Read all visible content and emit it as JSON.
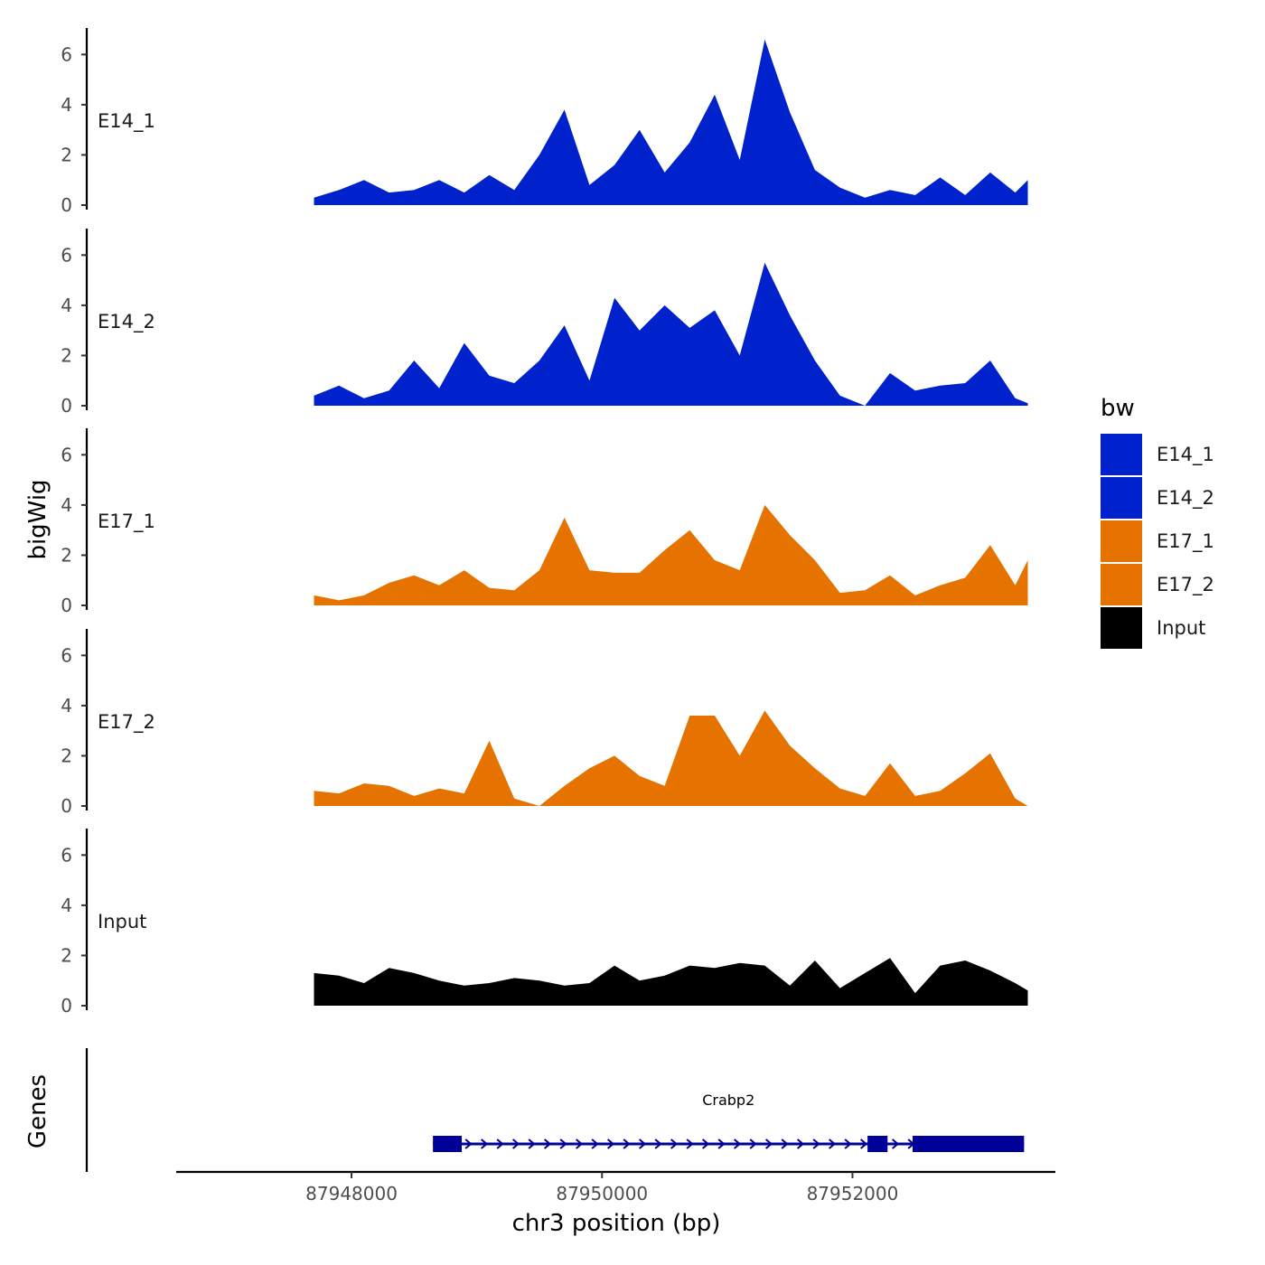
{
  "chart_data": {
    "type": "area",
    "title": "",
    "ylabel": "bigWig",
    "xlabel": "chr3 position (bp)",
    "chrom": "chr3",
    "xlim": [
      87946600,
      87953620
    ],
    "ylim": [
      0,
      7.2
    ],
    "yticks": [
      0,
      2,
      4,
      6
    ],
    "xticks": [
      87948000,
      87950000,
      87952000
    ],
    "xtick_labels": [
      "87948000",
      "87950000",
      "87952000"
    ],
    "x": [
      87947700,
      87947900,
      87948100,
      87948300,
      87948500,
      87948700,
      87948900,
      87949100,
      87949300,
      87949500,
      87949700,
      87949900,
      87950100,
      87950300,
      87950500,
      87950700,
      87950900,
      87951100,
      87951300,
      87951500,
      87951700,
      87951900,
      87952100,
      87952300,
      87952500,
      87952700,
      87952900,
      87953100,
      87953300,
      87953400
    ],
    "series": [
      {
        "name": "E14_1",
        "color": "#0022cc",
        "values": [
          0.3,
          0.6,
          1.0,
          0.5,
          0.6,
          1.0,
          0.5,
          1.2,
          0.6,
          2.0,
          3.8,
          0.8,
          1.6,
          3.0,
          1.3,
          2.5,
          4.4,
          1.8,
          6.6,
          3.7,
          1.4,
          0.7,
          0.3,
          0.6,
          0.4,
          1.1,
          0.4,
          1.3,
          0.5,
          1.0
        ]
      },
      {
        "name": "E14_2",
        "color": "#0022cc",
        "values": [
          0.4,
          0.8,
          0.3,
          0.6,
          1.8,
          0.7,
          2.5,
          1.2,
          0.9,
          1.8,
          3.2,
          1.0,
          4.3,
          3.0,
          4.0,
          3.1,
          3.8,
          2.0,
          5.7,
          3.6,
          1.8,
          0.4,
          0.0,
          1.3,
          0.6,
          0.8,
          0.9,
          1.8,
          0.3,
          0.1
        ]
      },
      {
        "name": "E17_1",
        "color": "#e67200",
        "values": [
          0.4,
          0.2,
          0.4,
          0.9,
          1.2,
          0.8,
          1.4,
          0.7,
          0.6,
          1.4,
          3.5,
          1.4,
          1.3,
          1.3,
          2.2,
          3.0,
          1.8,
          1.4,
          4.0,
          2.8,
          1.8,
          0.5,
          0.6,
          1.2,
          0.4,
          0.8,
          1.1,
          2.4,
          0.8,
          1.8
        ]
      },
      {
        "name": "E17_2",
        "color": "#e67200",
        "values": [
          0.6,
          0.5,
          0.9,
          0.8,
          0.4,
          0.7,
          0.5,
          2.6,
          0.3,
          0.0,
          0.8,
          1.5,
          2.0,
          1.2,
          0.8,
          3.6,
          3.6,
          2.0,
          3.8,
          2.4,
          1.5,
          0.7,
          0.4,
          1.7,
          0.4,
          0.6,
          1.3,
          2.1,
          0.3,
          0.0
        ]
      },
      {
        "name": "Input",
        "color": "#000000",
        "values": [
          1.3,
          1.2,
          0.9,
          1.5,
          1.3,
          1.0,
          0.8,
          0.9,
          1.1,
          1.0,
          0.8,
          0.9,
          1.6,
          1.0,
          1.2,
          1.6,
          1.5,
          1.7,
          1.6,
          0.8,
          1.8,
          0.7,
          1.3,
          1.9,
          0.5,
          1.6,
          1.8,
          1.4,
          0.9,
          0.6
        ]
      }
    ],
    "legend": {
      "title": "bw",
      "position": "right",
      "entries": [
        "E14_1",
        "E14_2",
        "E17_1",
        "E17_2",
        "Input"
      ]
    },
    "genes_track": {
      "title": "Genes",
      "gene": {
        "name": "Crabp2",
        "strand": "+",
        "start": 87948650,
        "end": 87953370,
        "color": "#000099",
        "exons": [
          [
            87948650,
            87948880
          ],
          [
            87952120,
            87952280
          ],
          [
            87952480,
            87953370
          ]
        ]
      }
    }
  }
}
